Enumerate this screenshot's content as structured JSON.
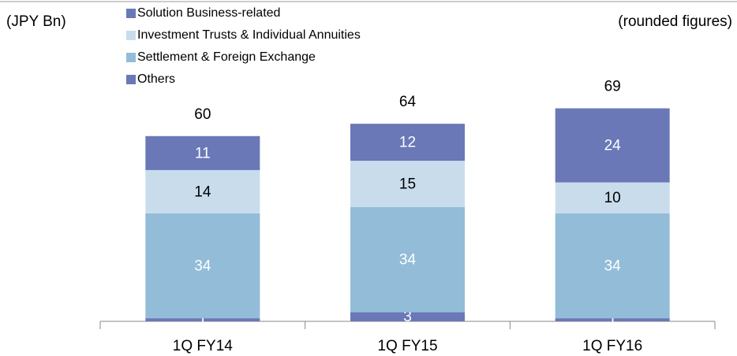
{
  "chart_data": {
    "type": "stacked_bar",
    "unit_label": "(JPY Bn)",
    "note": "(rounded figures)",
    "categories": [
      "1Q FY14",
      "1Q FY15",
      "1Q FY16"
    ],
    "series": [
      {
        "name": "Others",
        "color": "#6a78b8",
        "label_color": "#ffffff",
        "values": [
          1,
          3,
          1
        ]
      },
      {
        "name": "Settlement & Foreign Exchange",
        "color": "#93bcd9",
        "label_color": "#ffffff",
        "values": [
          34,
          34,
          34
        ]
      },
      {
        "name": "Investment Trusts & Individual Annuities",
        "color": "#c9dcec",
        "label_color": "#000000",
        "values": [
          14,
          15,
          10
        ]
      },
      {
        "name": "Solution Business-related",
        "color": "#6a78b8",
        "label_color": "#ffffff",
        "values": [
          11,
          12,
          24
        ]
      }
    ],
    "totals": [
      60,
      64,
      69
    ]
  }
}
